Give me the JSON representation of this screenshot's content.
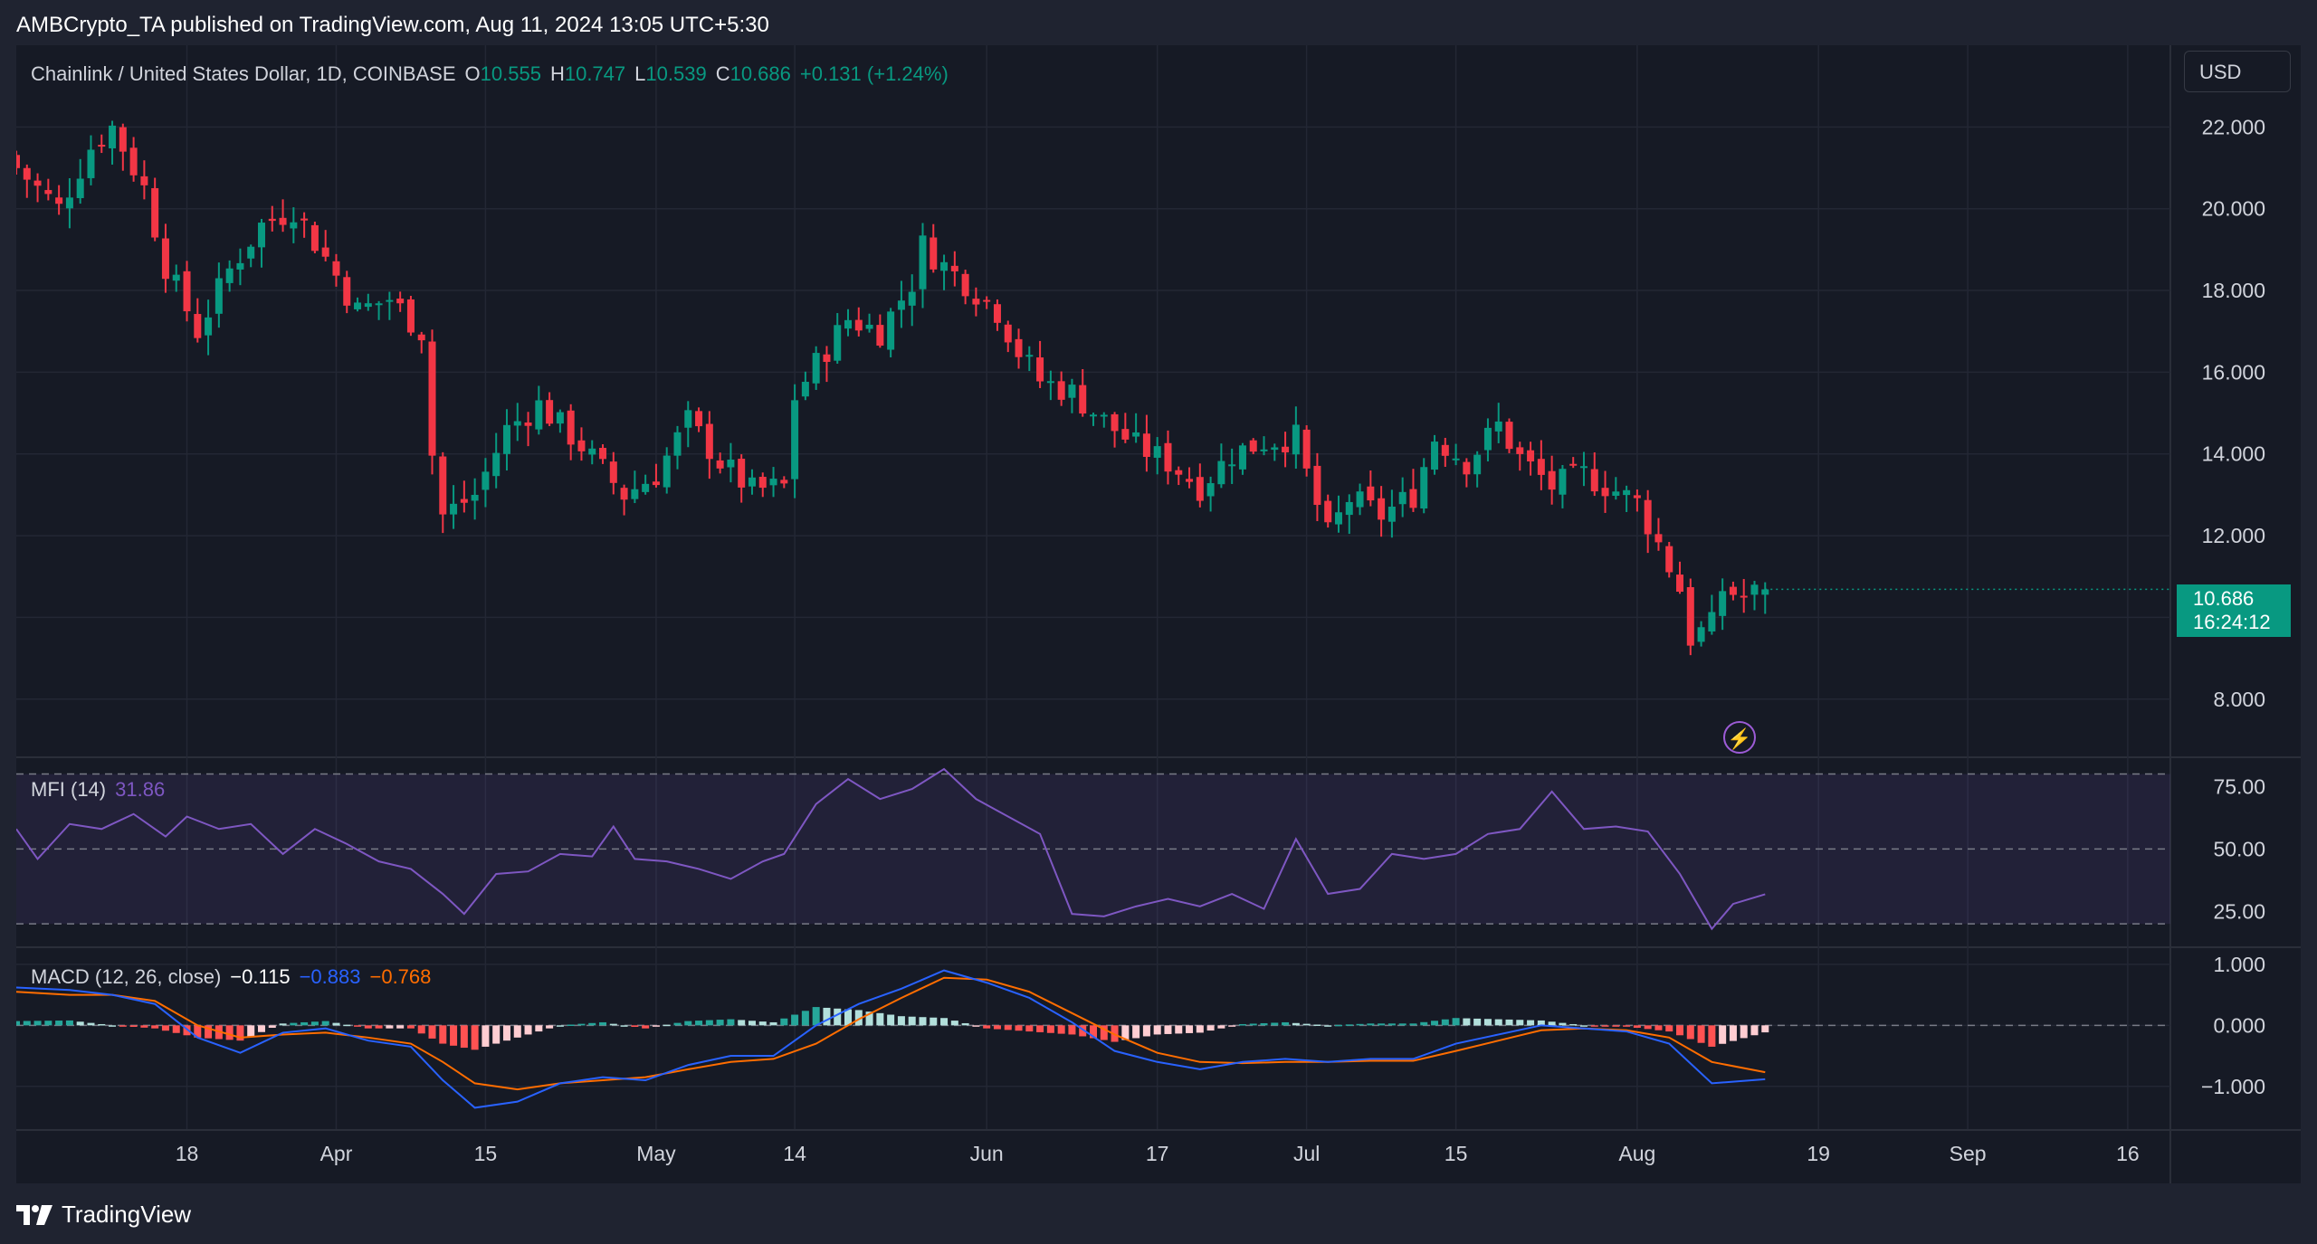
{
  "header": {
    "publisher_line": "AMBCrypto_TA published on TradingView.com, Aug 11, 2024 13:05 UTC+5:30"
  },
  "legend": {
    "symbol": "Chainlink / United States Dollar, 1D, COINBASE",
    "o_label": "O",
    "o_value": "10.555",
    "h_label": "H",
    "h_value": "10.747",
    "l_label": "L",
    "l_value": "10.539",
    "c_label": "C",
    "c_value": "10.686",
    "change": "+0.131 (+1.24%)"
  },
  "currency": "USD",
  "price_tag": {
    "price": "10.686",
    "countdown": "16:24:12"
  },
  "mfi": {
    "label": "MFI (14)",
    "value": "31.86"
  },
  "macd": {
    "label": "MACD (12, 26, close)",
    "hist": "−0.115",
    "macd": "−0.883",
    "signal": "−0.768"
  },
  "footer": {
    "brand": "TradingView"
  },
  "colors": {
    "up": "#089981",
    "down": "#f23645",
    "mfi": "#7e57c2",
    "macd": "#2962ff",
    "signal": "#ff6d00",
    "hist_up_strong": "#26a69a",
    "hist_up_weak": "#b2dfdb",
    "hist_down_strong": "#ff5252",
    "hist_down_weak": "#ffcdd2"
  },
  "icons": {
    "flash_icon": "lightning-bolt",
    "logo_icon": "tradingview-logo"
  },
  "chart_data": [
    {
      "type": "candlestick",
      "title": "Chainlink / United States Dollar, 1D, COINBASE",
      "y_ticks": [
        "22.000",
        "20.000",
        "18.000",
        "16.000",
        "14.000",
        "12.000",
        "8.000"
      ],
      "y_tick_values": [
        22,
        20,
        18,
        16,
        14,
        12,
        8
      ],
      "ylim": [
        6.6,
        24
      ],
      "x_ticks": [
        "18",
        "Apr",
        "15",
        "May",
        "14",
        "Jun",
        "17",
        "Jul",
        "15",
        "Aug",
        "19",
        "Sep",
        "16"
      ],
      "x_tick_days": [
        17,
        31,
        45,
        61,
        74,
        92,
        108,
        122,
        136,
        153,
        170,
        184,
        199
      ],
      "x_range_days": [
        1,
        203
      ],
      "anchors": [
        {
          "day": 1,
          "close": 21.0
        },
        {
          "day": 5,
          "close": 20.0
        },
        {
          "day": 8,
          "close": 21.5
        },
        {
          "day": 10,
          "close": 22.0
        },
        {
          "day": 13,
          "close": 20.5
        },
        {
          "day": 15,
          "close": 18.6
        },
        {
          "day": 18,
          "close": 17.0
        },
        {
          "day": 21,
          "close": 18.5
        },
        {
          "day": 24,
          "close": 19.6
        },
        {
          "day": 27,
          "close": 20.0
        },
        {
          "day": 30,
          "close": 18.8
        },
        {
          "day": 33,
          "close": 17.5
        },
        {
          "day": 36,
          "close": 17.8
        },
        {
          "day": 39,
          "close": 17.0
        },
        {
          "day": 40,
          "close": 14.0
        },
        {
          "day": 41,
          "close": 12.5
        },
        {
          "day": 44,
          "close": 13.0
        },
        {
          "day": 47,
          "close": 14.6
        },
        {
          "day": 50,
          "close": 15.2
        },
        {
          "day": 54,
          "close": 14.2
        },
        {
          "day": 58,
          "close": 13.0
        },
        {
          "day": 61,
          "close": 13.5
        },
        {
          "day": 64,
          "close": 14.8
        },
        {
          "day": 67,
          "close": 13.8
        },
        {
          "day": 70,
          "close": 13.1
        },
        {
          "day": 73,
          "close": 13.2
        },
        {
          "day": 74,
          "close": 15.4
        },
        {
          "day": 76,
          "close": 16.2
        },
        {
          "day": 79,
          "close": 17.3
        },
        {
          "day": 82,
          "close": 17.0
        },
        {
          "day": 85,
          "close": 18.2
        },
        {
          "day": 86,
          "close": 19.1
        },
        {
          "day": 88,
          "close": 18.6
        },
        {
          "day": 90,
          "close": 18.2
        },
        {
          "day": 93,
          "close": 17.5
        },
        {
          "day": 95,
          "close": 16.5
        },
        {
          "day": 97,
          "close": 15.8
        },
        {
          "day": 100,
          "close": 15.5
        },
        {
          "day": 103,
          "close": 14.8
        },
        {
          "day": 106,
          "close": 14.2
        },
        {
          "day": 109,
          "close": 13.8
        },
        {
          "day": 112,
          "close": 13.2
        },
        {
          "day": 115,
          "close": 14.0
        },
        {
          "day": 118,
          "close": 14.3
        },
        {
          "day": 121,
          "close": 14.4
        },
        {
          "day": 122,
          "close": 13.5
        },
        {
          "day": 124,
          "close": 12.0
        },
        {
          "day": 126,
          "close": 12.9
        },
        {
          "day": 129,
          "close": 12.5
        },
        {
          "day": 132,
          "close": 13.0
        },
        {
          "day": 134,
          "close": 14.4
        },
        {
          "day": 137,
          "close": 13.8
        },
        {
          "day": 140,
          "close": 14.7
        },
        {
          "day": 142,
          "close": 13.9
        },
        {
          "day": 145,
          "close": 13.2
        },
        {
          "day": 148,
          "close": 13.5
        },
        {
          "day": 151,
          "close": 13.1
        },
        {
          "day": 153,
          "close": 12.8
        },
        {
          "day": 155,
          "close": 11.8
        },
        {
          "day": 157,
          "close": 10.7
        },
        {
          "day": 158,
          "close": 9.5
        },
        {
          "day": 160,
          "close": 9.8
        },
        {
          "day": 161,
          "close": 10.7
        },
        {
          "day": 163,
          "close": 10.5
        },
        {
          "day": 165,
          "close": 10.686
        }
      ]
    },
    {
      "type": "line",
      "title": "MFI (14)",
      "y_ticks": [
        "75.00",
        "50.00",
        "25.00"
      ],
      "y_tick_values": [
        75,
        50,
        25
      ],
      "bands": [
        80,
        50,
        20
      ],
      "ylim": [
        11,
        86
      ],
      "points": [
        {
          "day": 1,
          "v": 58
        },
        {
          "day": 3,
          "v": 46
        },
        {
          "day": 6,
          "v": 60
        },
        {
          "day": 9,
          "v": 58
        },
        {
          "day": 12,
          "v": 64
        },
        {
          "day": 15,
          "v": 55
        },
        {
          "day": 17,
          "v": 63
        },
        {
          "day": 20,
          "v": 58
        },
        {
          "day": 23,
          "v": 60
        },
        {
          "day": 26,
          "v": 48
        },
        {
          "day": 29,
          "v": 58
        },
        {
          "day": 32,
          "v": 52
        },
        {
          "day": 35,
          "v": 45
        },
        {
          "day": 38,
          "v": 42
        },
        {
          "day": 41,
          "v": 32
        },
        {
          "day": 43,
          "v": 24
        },
        {
          "day": 46,
          "v": 40
        },
        {
          "day": 49,
          "v": 41
        },
        {
          "day": 52,
          "v": 48
        },
        {
          "day": 55,
          "v": 47
        },
        {
          "day": 57,
          "v": 59
        },
        {
          "day": 59,
          "v": 46
        },
        {
          "day": 62,
          "v": 45
        },
        {
          "day": 65,
          "v": 42
        },
        {
          "day": 68,
          "v": 38
        },
        {
          "day": 71,
          "v": 45
        },
        {
          "day": 73,
          "v": 48
        },
        {
          "day": 76,
          "v": 68
        },
        {
          "day": 79,
          "v": 78
        },
        {
          "day": 82,
          "v": 70
        },
        {
          "day": 85,
          "v": 74
        },
        {
          "day": 88,
          "v": 82
        },
        {
          "day": 91,
          "v": 70
        },
        {
          "day": 94,
          "v": 63
        },
        {
          "day": 97,
          "v": 56
        },
        {
          "day": 100,
          "v": 24
        },
        {
          "day": 103,
          "v": 23
        },
        {
          "day": 106,
          "v": 27
        },
        {
          "day": 109,
          "v": 30
        },
        {
          "day": 112,
          "v": 27
        },
        {
          "day": 115,
          "v": 32
        },
        {
          "day": 118,
          "v": 26
        },
        {
          "day": 121,
          "v": 54
        },
        {
          "day": 124,
          "v": 32
        },
        {
          "day": 127,
          "v": 34
        },
        {
          "day": 130,
          "v": 48
        },
        {
          "day": 133,
          "v": 46
        },
        {
          "day": 136,
          "v": 48
        },
        {
          "day": 139,
          "v": 56
        },
        {
          "day": 142,
          "v": 58
        },
        {
          "day": 145,
          "v": 73
        },
        {
          "day": 148,
          "v": 58
        },
        {
          "day": 151,
          "v": 59
        },
        {
          "day": 154,
          "v": 57
        },
        {
          "day": 157,
          "v": 40
        },
        {
          "day": 160,
          "v": 18
        },
        {
          "day": 162,
          "v": 28
        },
        {
          "day": 165,
          "v": 31.86
        }
      ]
    },
    {
      "type": "line",
      "title": "MACD (12, 26, close)",
      "y_ticks": [
        "1.000",
        "0.000",
        "−1.000"
      ],
      "y_tick_values": [
        1,
        0,
        -1
      ],
      "ylim": [
        -1.7,
        1.25
      ],
      "macd_points": [
        {
          "day": 1,
          "v": 0.62
        },
        {
          "day": 6,
          "v": 0.58
        },
        {
          "day": 10,
          "v": 0.5
        },
        {
          "day": 14,
          "v": 0.35
        },
        {
          "day": 18,
          "v": -0.2
        },
        {
          "day": 22,
          "v": -0.45
        },
        {
          "day": 26,
          "v": -0.12
        },
        {
          "day": 30,
          "v": -0.05
        },
        {
          "day": 34,
          "v": -0.25
        },
        {
          "day": 38,
          "v": -0.35
        },
        {
          "day": 41,
          "v": -0.9
        },
        {
          "day": 44,
          "v": -1.35
        },
        {
          "day": 48,
          "v": -1.25
        },
        {
          "day": 52,
          "v": -0.95
        },
        {
          "day": 56,
          "v": -0.85
        },
        {
          "day": 60,
          "v": -0.9
        },
        {
          "day": 64,
          "v": -0.65
        },
        {
          "day": 68,
          "v": -0.5
        },
        {
          "day": 72,
          "v": -0.5
        },
        {
          "day": 76,
          "v": 0.0
        },
        {
          "day": 80,
          "v": 0.35
        },
        {
          "day": 84,
          "v": 0.6
        },
        {
          "day": 88,
          "v": 0.9
        },
        {
          "day": 92,
          "v": 0.7
        },
        {
          "day": 96,
          "v": 0.45
        },
        {
          "day": 100,
          "v": 0.05
        },
        {
          "day": 104,
          "v": -0.42
        },
        {
          "day": 108,
          "v": -0.6
        },
        {
          "day": 112,
          "v": -0.72
        },
        {
          "day": 116,
          "v": -0.6
        },
        {
          "day": 120,
          "v": -0.55
        },
        {
          "day": 124,
          "v": -0.6
        },
        {
          "day": 128,
          "v": -0.55
        },
        {
          "day": 132,
          "v": -0.55
        },
        {
          "day": 136,
          "v": -0.3
        },
        {
          "day": 140,
          "v": -0.15
        },
        {
          "day": 144,
          "v": 0.0
        },
        {
          "day": 148,
          "v": -0.05
        },
        {
          "day": 152,
          "v": -0.1
        },
        {
          "day": 156,
          "v": -0.3
        },
        {
          "day": 160,
          "v": -0.95
        },
        {
          "day": 165,
          "v": -0.883
        }
      ],
      "signal_points": [
        {
          "day": 1,
          "v": 0.55
        },
        {
          "day": 6,
          "v": 0.5
        },
        {
          "day": 10,
          "v": 0.5
        },
        {
          "day": 14,
          "v": 0.4
        },
        {
          "day": 18,
          "v": 0.0
        },
        {
          "day": 22,
          "v": -0.2
        },
        {
          "day": 26,
          "v": -0.15
        },
        {
          "day": 30,
          "v": -0.12
        },
        {
          "day": 34,
          "v": -0.2
        },
        {
          "day": 38,
          "v": -0.3
        },
        {
          "day": 41,
          "v": -0.6
        },
        {
          "day": 44,
          "v": -0.95
        },
        {
          "day": 48,
          "v": -1.05
        },
        {
          "day": 52,
          "v": -0.95
        },
        {
          "day": 56,
          "v": -0.9
        },
        {
          "day": 60,
          "v": -0.85
        },
        {
          "day": 64,
          "v": -0.72
        },
        {
          "day": 68,
          "v": -0.6
        },
        {
          "day": 72,
          "v": -0.55
        },
        {
          "day": 76,
          "v": -0.3
        },
        {
          "day": 80,
          "v": 0.1
        },
        {
          "day": 84,
          "v": 0.45
        },
        {
          "day": 88,
          "v": 0.78
        },
        {
          "day": 92,
          "v": 0.75
        },
        {
          "day": 96,
          "v": 0.55
        },
        {
          "day": 100,
          "v": 0.2
        },
        {
          "day": 104,
          "v": -0.15
        },
        {
          "day": 108,
          "v": -0.45
        },
        {
          "day": 112,
          "v": -0.6
        },
        {
          "day": 116,
          "v": -0.62
        },
        {
          "day": 120,
          "v": -0.6
        },
        {
          "day": 124,
          "v": -0.6
        },
        {
          "day": 128,
          "v": -0.58
        },
        {
          "day": 132,
          "v": -0.58
        },
        {
          "day": 136,
          "v": -0.42
        },
        {
          "day": 140,
          "v": -0.25
        },
        {
          "day": 144,
          "v": -0.08
        },
        {
          "day": 148,
          "v": -0.05
        },
        {
          "day": 152,
          "v": -0.08
        },
        {
          "day": 156,
          "v": -0.2
        },
        {
          "day": 160,
          "v": -0.6
        },
        {
          "day": 165,
          "v": -0.768
        }
      ]
    }
  ]
}
